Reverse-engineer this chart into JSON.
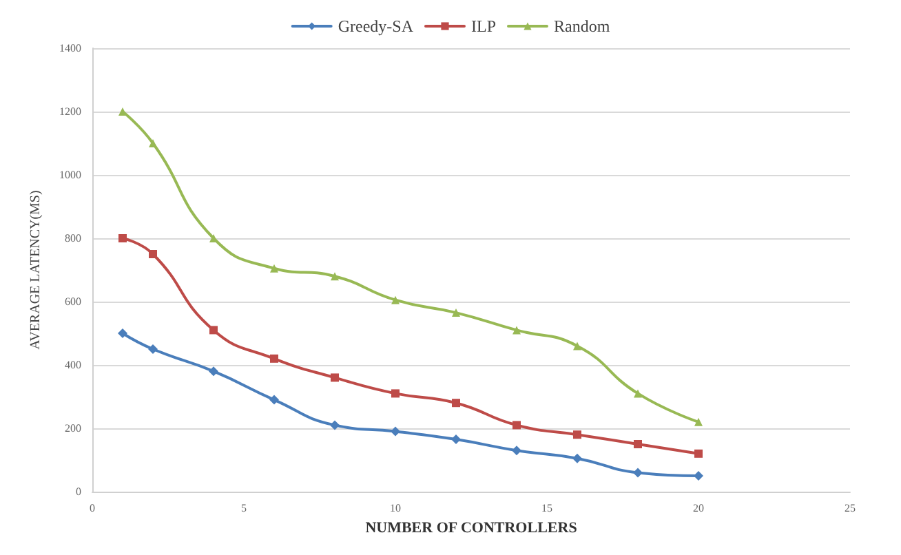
{
  "chart_data": {
    "type": "line",
    "xlabel": "NUMBER OF CONTROLLERS",
    "ylabel": "AVERAGE LATENCY(MS)",
    "x": [
      1,
      2,
      4,
      6,
      8,
      10,
      12,
      14,
      16,
      18,
      20
    ],
    "series": [
      {
        "name": "Greedy-SA",
        "color": "#4a7ebb",
        "marker": "diamond",
        "values": [
          500,
          450,
          380,
          290,
          210,
          190,
          165,
          130,
          105,
          60,
          50
        ]
      },
      {
        "name": "ILP",
        "color": "#be4b48",
        "marker": "square",
        "values": [
          800,
          750,
          510,
          420,
          360,
          310,
          280,
          210,
          180,
          150,
          120
        ]
      },
      {
        "name": "Random",
        "color": "#98b954",
        "marker": "triangle",
        "values": [
          1200,
          1100,
          800,
          705,
          680,
          605,
          565,
          510,
          460,
          310,
          220
        ]
      }
    ],
    "xlim": [
      0,
      25
    ],
    "xticks": [
      0,
      5,
      10,
      15,
      20,
      25
    ],
    "ylim": [
      0,
      1400
    ],
    "yticks": [
      0,
      200,
      400,
      600,
      800,
      1000,
      1200,
      1400
    ],
    "grid": "y",
    "legend": "top",
    "line_style": "solid"
  }
}
